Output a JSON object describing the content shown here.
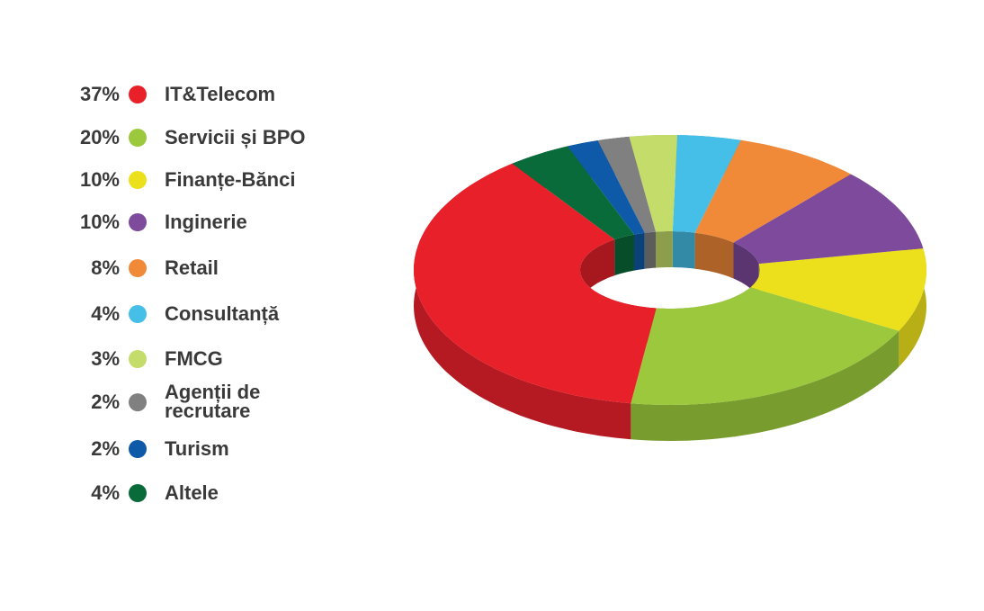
{
  "chart_data": {
    "type": "donut",
    "categories": [
      "IT&Telecom",
      "Servicii și BPO",
      "Finanțe-Bănci",
      "Inginerie",
      "Retail",
      "Consultanță",
      "FMCG",
      "Agenții de recrutare",
      "Turism",
      "Altele"
    ],
    "values": [
      37,
      20,
      10,
      10,
      8,
      4,
      3,
      2,
      2,
      4
    ],
    "value_labels": [
      "37%",
      "20%",
      "10%",
      "10%",
      "8%",
      "4%",
      "3%",
      "2%",
      "2%",
      "4%"
    ],
    "colors": [
      "#e8202a",
      "#9bc83c",
      "#ece01c",
      "#7d4a9c",
      "#f08a38",
      "#45bfe8",
      "#c3dc6a",
      "#808080",
      "#0f5aa8",
      "#0a6b3a"
    ]
  }
}
